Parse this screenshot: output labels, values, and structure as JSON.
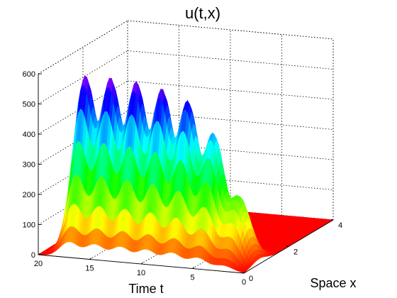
{
  "chart_data": {
    "type": "surface",
    "title": "u(t,x)",
    "xlabel": "Time t",
    "ylabel": "Space x",
    "zlabel": "",
    "t_range": [
      0,
      20
    ],
    "x_range": [
      0,
      4
    ],
    "z_range": [
      0,
      600
    ],
    "t_ticks": [
      "0",
      "5",
      "10",
      "15",
      "20"
    ],
    "x_ticks": [
      "0",
      "2",
      "4"
    ],
    "z_ticks": [
      "0",
      "100",
      "200",
      "300",
      "400",
      "500",
      "600"
    ],
    "grid": true,
    "colormap": "hsv (red at 0, through yellow, green, cyan, blue, to magenta at peak)",
    "peaks": [
      {
        "t": 2.0,
        "x": 0.7,
        "u": 210
      },
      {
        "t": 4.5,
        "x": 0.7,
        "u": 405
      },
      {
        "t": 7.0,
        "x": 0.7,
        "u": 500
      },
      {
        "t": 9.5,
        "x": 0.7,
        "u": 530
      },
      {
        "t": 12.0,
        "x": 0.7,
        "u": 545
      },
      {
        "t": 14.5,
        "x": 0.7,
        "u": 550
      },
      {
        "t": 17.0,
        "x": 0.7,
        "u": 560
      }
    ]
  }
}
